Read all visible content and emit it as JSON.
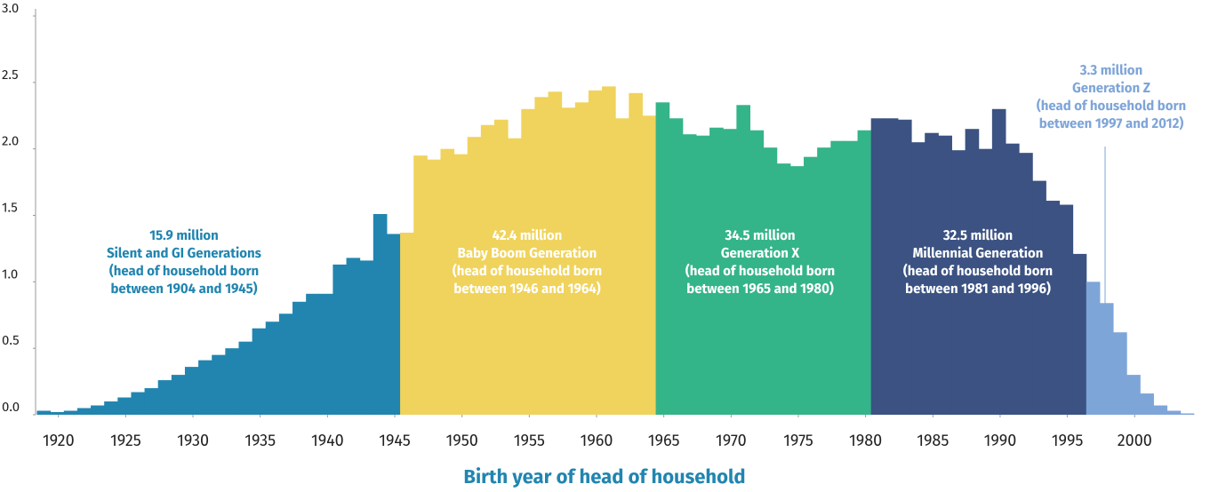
{
  "chart_data": {
    "type": "bar",
    "x_label": "Birth year of head of household",
    "xlim": [
      1918.3,
      2005.6
    ],
    "xticks": [
      1920,
      1925,
      1930,
      1935,
      1940,
      1945,
      1950,
      1955,
      1960,
      1965,
      1970,
      1975,
      1980,
      1985,
      1990,
      1995,
      2000
    ],
    "ylim": [
      0,
      3
    ],
    "yticks": [
      {
        "value": 0,
        "label": "0.0"
      },
      0.5,
      {
        "value": 1,
        "label": "1.0"
      },
      1.5,
      {
        "value": 2,
        "label": "2.0"
      },
      2.5,
      {
        "value": 3,
        "label": "3.0"
      }
    ],
    "series": [
      {
        "color": "#2185b0",
        "annotation": [
          "15.9 million",
          "Silent and GI Generations",
          "(head of household born",
          "between 1904 and 1945)"
        ],
        "x": [
          1919,
          1920,
          1921,
          1922,
          1923,
          1924,
          1925,
          1926,
          1927,
          1928,
          1929,
          1930,
          1931,
          1932,
          1933,
          1934,
          1935,
          1936,
          1937,
          1938,
          1939,
          1940,
          1941,
          1942,
          1943,
          1944,
          1945
        ],
        "values": [
          0.03,
          0.02,
          0.03,
          0.05,
          0.07,
          0.1,
          0.13,
          0.17,
          0.2,
          0.26,
          0.3,
          0.36,
          0.41,
          0.45,
          0.5,
          0.55,
          0.65,
          0.7,
          0.76,
          0.85,
          0.91,
          0.91,
          1.13,
          1.18,
          1.16,
          1.51,
          1.36
        ]
      },
      {
        "color": "#f0d35c",
        "annotation": [
          "42.4 million",
          "Baby Boom Generation",
          "(head of household born",
          "between 1946 and 1964)"
        ],
        "x": [
          1946,
          1947,
          1948,
          1949,
          1950,
          1951,
          1952,
          1953,
          1954,
          1955,
          1956,
          1957,
          1958,
          1959,
          1960,
          1961,
          1962,
          1963,
          1964
        ],
        "values": [
          1.37,
          1.95,
          1.92,
          2.0,
          1.96,
          2.09,
          2.18,
          2.22,
          2.08,
          2.3,
          2.39,
          2.43,
          2.31,
          2.35,
          2.44,
          2.47,
          2.23,
          2.42,
          2.25
        ]
      },
      {
        "color": "#34b489",
        "annotation": [
          "34.5 million",
          "Generation X",
          "(head of household born",
          "between 1965 and 1980)"
        ],
        "x": [
          1965,
          1966,
          1967,
          1968,
          1969,
          1970,
          1971,
          1972,
          1973,
          1974,
          1975,
          1976,
          1977,
          1978,
          1979,
          1980
        ],
        "values": [
          2.35,
          2.23,
          2.11,
          2.1,
          2.16,
          2.15,
          2.33,
          2.14,
          2.01,
          1.89,
          1.87,
          1.94,
          2.01,
          2.06,
          2.06,
          2.14
        ]
      },
      {
        "color": "#3b5282",
        "annotation": [
          "32.5 million",
          "Millennial Generation",
          "(head of household born",
          "between 1981 and 1996)"
        ],
        "x": [
          1981,
          1982,
          1983,
          1984,
          1985,
          1986,
          1987,
          1988,
          1989,
          1990,
          1991,
          1992,
          1993,
          1994,
          1995,
          1996
        ],
        "values": [
          2.23,
          2.23,
          2.22,
          2.05,
          2.12,
          2.1,
          1.99,
          2.15,
          2.0,
          2.3,
          2.04,
          1.97,
          1.76,
          1.61,
          1.58,
          1.21
        ]
      },
      {
        "color": "#7ea5d8",
        "annotation": [
          "3.3 million",
          "Generation Z",
          "(head of household born",
          "between 1997 and 2012)"
        ],
        "x": [
          1997,
          1998,
          1999,
          2000,
          2001,
          2002,
          2003,
          2004
        ],
        "values": [
          1.0,
          0.84,
          0.62,
          0.3,
          0.16,
          0.07,
          0.03,
          0.01
        ]
      }
    ]
  }
}
